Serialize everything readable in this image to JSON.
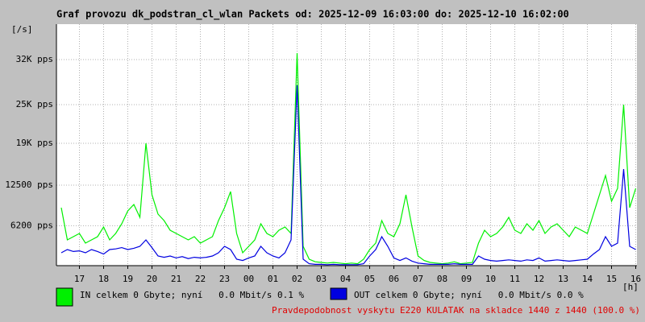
{
  "chart_data": {
    "type": "line",
    "title": "Graf provozu dk_podstran_cl_wlan Packets od: 2025-12-09 16:03:00 do: 2025-12-10 16:02:00",
    "y_unit": "[/s]",
    "x_unit": "[h]",
    "note": "Pravdepodobnost vyskytu E220 KULATAK na skladce 1440 z 1440 (100.0 %)",
    "grid": true,
    "xlim": [
      16.05,
      40.05
    ],
    "xticks": [
      {
        "value": 17,
        "label": "17"
      },
      {
        "value": 18,
        "label": "18"
      },
      {
        "value": 19,
        "label": "19"
      },
      {
        "value": 20,
        "label": "20"
      },
      {
        "value": 21,
        "label": "21"
      },
      {
        "value": 22,
        "label": "22"
      },
      {
        "value": 23,
        "label": "23"
      },
      {
        "value": 24,
        "label": "00"
      },
      {
        "value": 25,
        "label": "01"
      },
      {
        "value": 26,
        "label": "02"
      },
      {
        "value": 27,
        "label": "03"
      },
      {
        "value": 28,
        "label": "04"
      },
      {
        "value": 29,
        "label": "05"
      },
      {
        "value": 30,
        "label": "06"
      },
      {
        "value": 31,
        "label": "07"
      },
      {
        "value": 32,
        "label": "08"
      },
      {
        "value": 33,
        "label": "09"
      },
      {
        "value": 34,
        "label": "10"
      },
      {
        "value": 35,
        "label": "11"
      },
      {
        "value": 36,
        "label": "12"
      },
      {
        "value": 37,
        "label": "13"
      },
      {
        "value": 38,
        "label": "14"
      },
      {
        "value": 39,
        "label": "15"
      },
      {
        "value": 40,
        "label": "16"
      }
    ],
    "ylim": [
      0,
      37500
    ],
    "yticks": [
      {
        "value": 6200,
        "label": "6200 pps"
      },
      {
        "value": 12500,
        "label": "12500 pps"
      },
      {
        "value": 19000,
        "label": "19K pps"
      },
      {
        "value": 25000,
        "label": "25K pps"
      },
      {
        "value": 32000,
        "label": "32K pps"
      }
    ],
    "x": [
      16.25,
      16.5,
      16.75,
      17,
      17.25,
      17.5,
      17.75,
      18,
      18.25,
      18.5,
      18.75,
      19,
      19.25,
      19.5,
      19.75,
      20,
      20.25,
      20.5,
      20.75,
      21,
      21.25,
      21.5,
      21.75,
      22,
      22.25,
      22.5,
      22.75,
      23,
      23.25,
      23.5,
      23.75,
      24,
      24.25,
      24.5,
      24.75,
      25,
      25.25,
      25.5,
      25.75,
      26,
      26.25,
      26.5,
      26.75,
      27,
      27.25,
      27.5,
      27.75,
      28,
      28.25,
      28.5,
      28.75,
      29,
      29.25,
      29.5,
      29.75,
      30,
      30.25,
      30.5,
      30.75,
      31,
      31.25,
      31.5,
      31.75,
      32,
      32.25,
      32.5,
      32.75,
      33,
      33.25,
      33.5,
      33.75,
      34,
      34.25,
      34.5,
      34.75,
      35,
      35.25,
      35.5,
      35.75,
      36,
      36.25,
      36.5,
      36.75,
      37,
      37.25,
      37.5,
      37.75,
      38,
      38.25,
      38.5,
      38.75,
      39,
      39.25,
      39.5,
      39.75,
      40
    ],
    "series": [
      {
        "name": "IN celkem 0 Gbyte; nyní   0.0 Mbit/s 0.1 %",
        "color": "#00f000",
        "values": [
          9000,
          4000,
          4500,
          5000,
          3500,
          4000,
          4500,
          6000,
          4000,
          5000,
          6500,
          8500,
          9500,
          7500,
          19000,
          11000,
          8000,
          7000,
          5500,
          5000,
          4500,
          4000,
          4500,
          3500,
          4000,
          4500,
          7000,
          9000,
          11500,
          5000,
          2000,
          3000,
          4000,
          6500,
          5000,
          4500,
          5500,
          6000,
          5000,
          33000,
          3000,
          1000,
          600,
          500,
          400,
          500,
          400,
          300,
          400,
          300,
          1000,
          2500,
          3500,
          7000,
          5000,
          4500,
          6500,
          11000,
          6000,
          1500,
          800,
          500,
          400,
          300,
          400,
          600,
          300,
          400,
          500,
          3500,
          5500,
          4500,
          5000,
          6000,
          7500,
          5500,
          5000,
          6500,
          5500,
          7000,
          5000,
          6000,
          6500,
          5500,
          4500,
          6000,
          5500,
          5000,
          8000,
          11000,
          14000,
          10000,
          12000,
          25000,
          9000,
          12000
        ]
      },
      {
        "name": "OUT celkem 0 Gbyte; nyní   0.0 Mbit/s 0.0 %",
        "color": "#0000e0",
        "values": [
          2000,
          2500,
          2200,
          2300,
          2000,
          2500,
          2200,
          1800,
          2500,
          2600,
          2800,
          2500,
          2700,
          3000,
          4000,
          2800,
          1500,
          1300,
          1500,
          1200,
          1400,
          1100,
          1300,
          1200,
          1300,
          1500,
          2000,
          3000,
          2500,
          1000,
          800,
          1200,
          1500,
          3000,
          2000,
          1500,
          1200,
          2000,
          4000,
          28000,
          1000,
          300,
          200,
          200,
          150,
          200,
          150,
          150,
          150,
          150,
          300,
          1500,
          2500,
          4500,
          3000,
          1200,
          800,
          1200,
          700,
          400,
          300,
          200,
          200,
          200,
          200,
          300,
          200,
          200,
          200,
          1500,
          1000,
          800,
          700,
          800,
          900,
          800,
          700,
          900,
          800,
          1200,
          700,
          800,
          900,
          800,
          700,
          800,
          900,
          1000,
          1800,
          2500,
          4500,
          3000,
          3500,
          15000,
          3000,
          2500
        ]
      }
    ]
  }
}
